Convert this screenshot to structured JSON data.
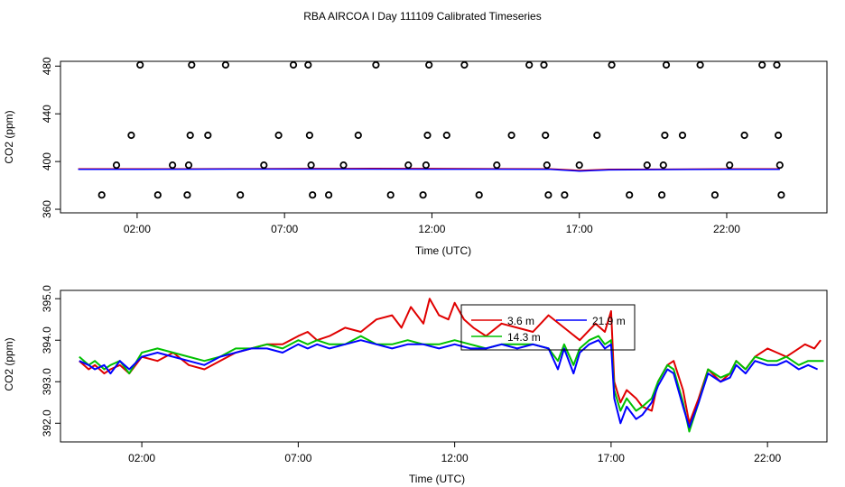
{
  "title": "RBA AIRCOA I  Day 111109  Calibrated Timeseries",
  "colors": {
    "red": "#e00000",
    "green": "#00c000",
    "blue": "#0000ff",
    "axis": "#000000"
  },
  "chart_data": [
    {
      "type": "scatter",
      "xlabel": "Time (UTC)",
      "ylabel": "CO2 (ppm)",
      "xlim": [
        -0.6,
        25.4
      ],
      "ylim": [
        357,
        484
      ],
      "x_ticks": [
        2,
        7,
        12,
        17,
        22
      ],
      "x_tick_labels": [
        "02:00",
        "07:00",
        "12:00",
        "17:00",
        "22:00"
      ],
      "y_ticks": [
        360,
        400,
        440,
        480
      ],
      "y_tick_labels": [
        "360",
        "400",
        "440",
        "480"
      ],
      "grid": false,
      "points": [
        [
          0.8,
          372
        ],
        [
          1.3,
          397
        ],
        [
          1.8,
          422
        ],
        [
          2.1,
          481
        ],
        [
          2.7,
          372
        ],
        [
          3.2,
          397
        ],
        [
          3.7,
          372
        ],
        [
          3.75,
          397
        ],
        [
          3.8,
          422
        ],
        [
          3.85,
          481
        ],
        [
          4.4,
          422
        ],
        [
          5.0,
          481
        ],
        [
          5.5,
          372
        ],
        [
          6.3,
          397
        ],
        [
          6.8,
          422
        ],
        [
          7.3,
          481
        ],
        [
          7.8,
          481
        ],
        [
          7.85,
          422
        ],
        [
          7.9,
          397
        ],
        [
          7.95,
          372
        ],
        [
          8.5,
          372
        ],
        [
          9.0,
          397
        ],
        [
          9.5,
          422
        ],
        [
          10.1,
          481
        ],
        [
          10.6,
          372
        ],
        [
          11.2,
          397
        ],
        [
          11.7,
          372
        ],
        [
          11.8,
          397
        ],
        [
          11.85,
          422
        ],
        [
          11.9,
          481
        ],
        [
          12.5,
          422
        ],
        [
          13.1,
          481
        ],
        [
          13.6,
          372
        ],
        [
          14.2,
          397
        ],
        [
          14.7,
          422
        ],
        [
          15.3,
          481
        ],
        [
          15.8,
          481
        ],
        [
          15.85,
          422
        ],
        [
          15.9,
          397
        ],
        [
          15.95,
          372
        ],
        [
          16.5,
          372
        ],
        [
          17.0,
          397
        ],
        [
          17.6,
          422
        ],
        [
          18.1,
          481
        ],
        [
          18.7,
          372
        ],
        [
          19.3,
          397
        ],
        [
          19.8,
          372
        ],
        [
          19.85,
          397
        ],
        [
          19.9,
          422
        ],
        [
          19.95,
          481
        ],
        [
          20.5,
          422
        ],
        [
          21.1,
          481
        ],
        [
          21.6,
          372
        ],
        [
          22.1,
          397
        ],
        [
          22.6,
          422
        ],
        [
          23.2,
          481
        ],
        [
          23.7,
          481
        ],
        [
          23.75,
          422
        ],
        [
          23.8,
          397
        ],
        [
          23.85,
          372
        ]
      ],
      "lines": [
        {
          "color": "#e00000",
          "x": [
            0,
            2,
            4,
            6,
            8,
            10,
            12,
            14,
            16,
            17,
            18,
            20,
            22,
            23.8
          ],
          "y": [
            393.8,
            393.8,
            393.9,
            394.0,
            394.1,
            394.2,
            394.1,
            394.0,
            393.9,
            392.5,
            393.5,
            393.6,
            393.8,
            393.9
          ]
        },
        {
          "color": "#0000ff",
          "x": [
            0,
            2,
            4,
            6,
            8,
            10,
            12,
            14,
            16,
            17,
            18,
            20,
            22,
            23.8
          ],
          "y": [
            393.5,
            393.5,
            393.6,
            393.7,
            393.7,
            393.7,
            393.6,
            393.6,
            393.4,
            392.0,
            393.0,
            393.3,
            393.5,
            393.5
          ]
        }
      ]
    },
    {
      "type": "line",
      "xlabel": "Time (UTC)",
      "ylabel": "CO2 (ppm)",
      "xlim": [
        -0.6,
        23.9
      ],
      "ylim": [
        391.55,
        395.2
      ],
      "x_ticks": [
        2,
        7,
        12,
        17,
        22
      ],
      "x_tick_labels": [
        "02:00",
        "07:00",
        "12:00",
        "17:00",
        "22:00"
      ],
      "y_ticks": [
        392.0,
        393.0,
        394.0,
        395.0
      ],
      "y_tick_labels": [
        "392.0",
        "393.0",
        "394.0",
        "395.0"
      ],
      "grid": false,
      "legend": {
        "position": "top-center",
        "entries": [
          "3.6 m",
          "21.9 m",
          "14.3 m"
        ]
      },
      "series": [
        {
          "name": "3.6 m",
          "color": "#e00000",
          "x": [
            0,
            0.3,
            0.5,
            0.8,
            1.0,
            1.3,
            1.6,
            2.0,
            2.5,
            3.0,
            3.5,
            4.0,
            4.5,
            5.0,
            5.5,
            6.0,
            6.5,
            7.0,
            7.3,
            7.6,
            8.0,
            8.5,
            9.0,
            9.5,
            10.0,
            10.3,
            10.6,
            11.0,
            11.2,
            11.5,
            11.8,
            12.0,
            12.3,
            12.6,
            13.0,
            13.5,
            14.0,
            14.5,
            15.0,
            15.5,
            16.0,
            16.5,
            16.8,
            17.0,
            17.1,
            17.3,
            17.5,
            17.8,
            18.0,
            18.3,
            18.5,
            18.8,
            19.0,
            19.3,
            19.5,
            19.8,
            20.1,
            20.5,
            20.8,
            21.0,
            21.3,
            21.6,
            22.0,
            22.3,
            22.6,
            23.0,
            23.2,
            23.5,
            23.7
          ],
          "y": [
            393.5,
            393.3,
            393.4,
            393.2,
            393.3,
            393.4,
            393.2,
            393.6,
            393.5,
            393.7,
            393.4,
            393.3,
            393.5,
            393.7,
            393.8,
            393.9,
            393.9,
            394.1,
            394.2,
            394.0,
            394.1,
            394.3,
            394.2,
            394.5,
            394.6,
            394.3,
            394.8,
            394.4,
            395.0,
            394.6,
            394.5,
            394.9,
            394.5,
            394.3,
            394.1,
            394.4,
            394.3,
            394.2,
            394.6,
            394.3,
            394.0,
            394.4,
            394.2,
            394.7,
            393.0,
            392.5,
            392.8,
            392.6,
            392.4,
            392.3,
            393.0,
            393.4,
            393.5,
            392.8,
            392.0,
            392.6,
            393.3,
            393.0,
            393.2,
            393.5,
            393.3,
            393.6,
            393.8,
            393.7,
            393.6,
            393.8,
            393.9,
            393.8,
            394.0
          ]
        },
        {
          "name": "21.9 m",
          "color": "#0000ff",
          "x": [
            0,
            0.3,
            0.5,
            0.8,
            1.0,
            1.3,
            1.6,
            2.0,
            2.5,
            3.0,
            3.5,
            4.0,
            4.5,
            5.0,
            5.5,
            6.0,
            6.5,
            7.0,
            7.3,
            7.6,
            8.0,
            8.5,
            9.0,
            9.5,
            10.0,
            10.5,
            11.0,
            11.5,
            12.0,
            12.5,
            13.0,
            13.5,
            14.0,
            14.5,
            15.0,
            15.3,
            15.5,
            15.8,
            16.0,
            16.3,
            16.6,
            16.8,
            17.0,
            17.1,
            17.3,
            17.5,
            17.8,
            18.0,
            18.3,
            18.5,
            18.8,
            19.0,
            19.3,
            19.5,
            19.8,
            20.1,
            20.5,
            20.8,
            21.0,
            21.3,
            21.6,
            22.0,
            22.3,
            22.6,
            23.0,
            23.3,
            23.6
          ],
          "y": [
            393.5,
            393.4,
            393.3,
            393.4,
            393.2,
            393.5,
            393.3,
            393.6,
            393.7,
            393.6,
            393.5,
            393.4,
            393.6,
            393.7,
            393.8,
            393.8,
            393.7,
            393.9,
            393.8,
            393.9,
            393.8,
            393.9,
            394.0,
            393.9,
            393.8,
            393.9,
            393.9,
            393.8,
            393.9,
            393.8,
            393.8,
            393.9,
            393.8,
            393.9,
            393.8,
            393.3,
            393.8,
            393.2,
            393.7,
            393.9,
            394.0,
            393.8,
            393.9,
            392.6,
            392.0,
            392.4,
            392.1,
            392.2,
            392.5,
            392.9,
            393.3,
            393.2,
            392.4,
            391.9,
            392.5,
            393.2,
            393.0,
            393.1,
            393.4,
            393.2,
            393.5,
            393.4,
            393.4,
            393.5,
            393.3,
            393.4,
            393.3
          ]
        },
        {
          "name": "14.3 m",
          "color": "#00c000",
          "x": [
            0,
            0.3,
            0.5,
            0.8,
            1.0,
            1.3,
            1.6,
            2.0,
            2.5,
            3.0,
            3.5,
            4.0,
            4.5,
            5.0,
            5.5,
            6.0,
            6.5,
            7.0,
            7.3,
            7.6,
            8.0,
            8.5,
            9.0,
            9.5,
            10.0,
            10.5,
            11.0,
            11.5,
            12.0,
            12.5,
            13.0,
            13.5,
            14.0,
            14.5,
            15.0,
            15.3,
            15.5,
            15.8,
            16.0,
            16.3,
            16.6,
            16.8,
            17.0,
            17.1,
            17.3,
            17.5,
            17.8,
            18.0,
            18.3,
            18.5,
            18.8,
            19.0,
            19.3,
            19.5,
            19.8,
            20.1,
            20.5,
            20.8,
            21.0,
            21.3,
            21.6,
            22.0,
            22.3,
            22.6,
            23.0,
            23.3,
            23.8
          ],
          "y": [
            393.6,
            393.4,
            393.5,
            393.3,
            393.4,
            393.5,
            393.2,
            393.7,
            393.8,
            393.7,
            393.6,
            393.5,
            393.6,
            393.8,
            393.8,
            393.9,
            393.8,
            394.0,
            393.9,
            394.0,
            393.9,
            393.9,
            394.1,
            393.9,
            393.9,
            394.0,
            393.9,
            393.9,
            394.0,
            393.9,
            393.8,
            393.9,
            393.9,
            393.9,
            393.8,
            393.5,
            393.9,
            393.4,
            393.8,
            394.0,
            394.1,
            393.9,
            394.0,
            392.8,
            392.3,
            392.6,
            392.3,
            392.4,
            392.6,
            393.0,
            393.4,
            393.3,
            392.5,
            391.8,
            392.5,
            393.3,
            393.1,
            393.2,
            393.5,
            393.3,
            393.6,
            393.5,
            393.5,
            393.6,
            393.4,
            393.5,
            393.5
          ]
        }
      ]
    }
  ]
}
